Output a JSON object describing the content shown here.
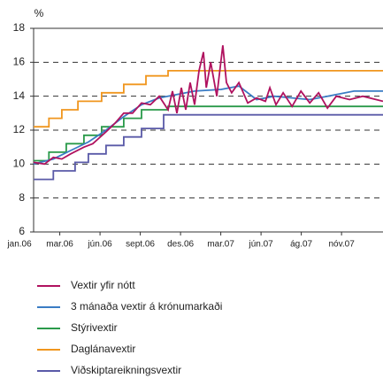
{
  "chart_data": {
    "type": "line",
    "y_unit": "%",
    "xlim": [
      0.35,
      9.03
    ],
    "xticks": [
      {
        "value": 0,
        "label": "jan.06"
      },
      {
        "value": 1,
        "label": "mar.06"
      },
      {
        "value": 2,
        "label": "jún.06"
      },
      {
        "value": 3,
        "label": "sept.06"
      },
      {
        "value": 4,
        "label": "des.06"
      },
      {
        "value": 5,
        "label": "mar.07"
      },
      {
        "value": 6,
        "label": "jún.07"
      },
      {
        "value": 7,
        "label": "ág.07"
      },
      {
        "value": 8,
        "label": "nóv.07"
      }
    ],
    "ylim": [
      6,
      18
    ],
    "yticks": [
      6,
      8,
      10,
      12,
      14,
      16,
      18
    ],
    "grid": true,
    "series": [
      {
        "name": "Vextir yfir nótt",
        "color": "#b0125f",
        "x": [
          0.35,
          0.62,
          0.84,
          1.05,
          1.27,
          1.6,
          1.82,
          2.15,
          2.37,
          2.59,
          2.81,
          3.03,
          3.25,
          3.47,
          3.69,
          3.8,
          3.91,
          4.02,
          4.13,
          4.24,
          4.35,
          4.46,
          4.57,
          4.64,
          4.75,
          4.9,
          5.05,
          5.14,
          5.27,
          5.45,
          5.67,
          5.89,
          6.11,
          6.22,
          6.37,
          6.55,
          6.77,
          6.99,
          7.21,
          7.43,
          7.65,
          7.87,
          8.2,
          8.53,
          9.03
        ],
        "values": [
          10.1,
          10.0,
          10.4,
          10.3,
          10.6,
          11.0,
          11.2,
          11.9,
          12.4,
          13.0,
          13.0,
          13.6,
          13.5,
          14.0,
          13.2,
          14.3,
          13.0,
          14.5,
          13.2,
          14.8,
          13.5,
          15.5,
          16.6,
          14.5,
          16.0,
          14.0,
          17.0,
          14.8,
          14.2,
          14.8,
          13.6,
          13.9,
          13.7,
          14.5,
          13.5,
          14.2,
          13.4,
          14.3,
          13.6,
          14.2,
          13.3,
          14.0,
          13.8,
          14.0,
          13.7
        ]
      },
      {
        "name": "3 mánaða vextir á krónumarkaði",
        "color": "#3a7cc4",
        "x": [
          0.35,
          0.84,
          1.27,
          1.71,
          2.15,
          2.59,
          3.03,
          3.47,
          3.91,
          4.35,
          5.01,
          5.45,
          5.89,
          6.33,
          6.77,
          7.21,
          7.65,
          8.31,
          9.03
        ],
        "values": [
          10.0,
          10.3,
          10.8,
          11.3,
          12.0,
          12.8,
          13.5,
          13.9,
          14.1,
          14.3,
          14.4,
          14.6,
          13.8,
          14.0,
          13.9,
          13.8,
          14.0,
          14.3,
          14.3
        ]
      },
      {
        "name": "Stýrivextir",
        "color": "#2a9a4a",
        "x": [
          0.35,
          0.73,
          0.73,
          1.16,
          1.16,
          1.6,
          1.6,
          2.04,
          2.04,
          2.59,
          2.59,
          3.03,
          3.03,
          3.69,
          3.69,
          9.03
        ],
        "values": [
          10.2,
          10.2,
          10.7,
          10.7,
          11.2,
          11.2,
          11.7,
          11.7,
          12.2,
          12.2,
          12.7,
          12.7,
          13.2,
          13.2,
          13.4,
          13.4
        ]
      },
      {
        "name": "Daglánavextir",
        "color": "#f0961e",
        "x": [
          0.35,
          0.73,
          0.73,
          1.05,
          1.05,
          1.45,
          1.45,
          2.04,
          2.04,
          2.59,
          2.59,
          3.14,
          3.14,
          3.69,
          3.69,
          9.03
        ],
        "values": [
          12.2,
          12.2,
          12.7,
          12.7,
          13.2,
          13.2,
          13.7,
          13.7,
          14.2,
          14.2,
          14.7,
          14.7,
          15.2,
          15.2,
          15.5,
          15.5
        ]
      },
      {
        "name": "Viðskiptareikningsvextir",
        "color": "#5a5aa8",
        "x": [
          0.35,
          0.84,
          0.84,
          1.38,
          1.38,
          1.71,
          1.71,
          2.15,
          2.15,
          2.59,
          2.59,
          3.03,
          3.03,
          3.58,
          3.58,
          9.03
        ],
        "values": [
          9.1,
          9.1,
          9.6,
          9.6,
          10.1,
          10.1,
          10.6,
          10.6,
          11.1,
          11.1,
          11.6,
          11.6,
          12.1,
          12.1,
          12.9,
          12.9
        ]
      }
    ]
  }
}
